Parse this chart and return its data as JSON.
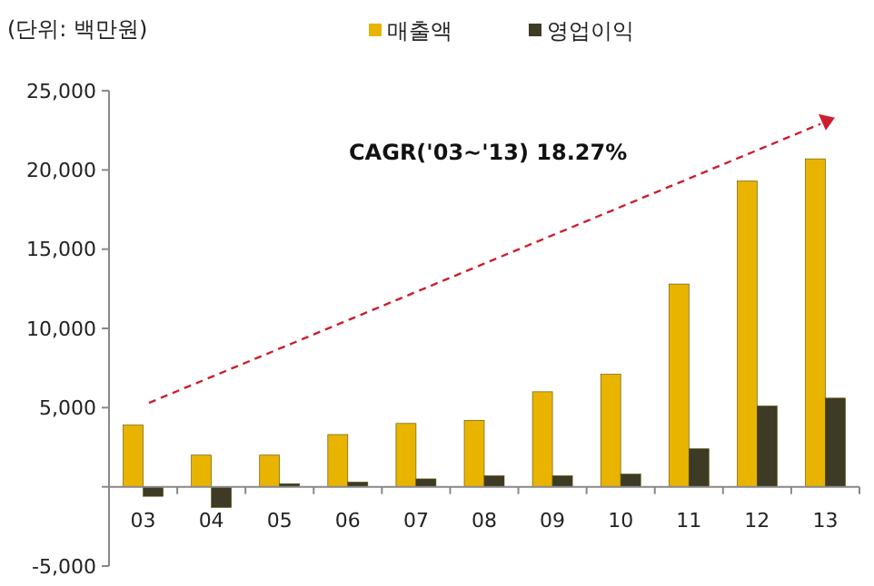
{
  "chart_data": {
    "type": "bar",
    "ylabel": "(단위: 백만원)",
    "annotations": [
      "CAGR('03~'13) 18.27%"
    ],
    "categories": [
      "03",
      "04",
      "05",
      "06",
      "07",
      "08",
      "09",
      "10",
      "11",
      "12",
      "13"
    ],
    "series": [
      {
        "name": "매출액",
        "color": "#e8b400",
        "values": [
          3900,
          2000,
          2000,
          3300,
          4000,
          4200,
          6000,
          7100,
          12800,
          19300,
          20700
        ]
      },
      {
        "name": "영업이익",
        "color": "#3d3a25",
        "values": [
          -600,
          -1300,
          200,
          300,
          500,
          700,
          700,
          800,
          2400,
          5100,
          5600
        ]
      }
    ],
    "ylim": [
      -5000,
      25000
    ],
    "yticks": [
      {
        "value": -5000,
        "label": "-5,000"
      },
      {
        "value": 0,
        "label": null
      },
      {
        "value": 5000,
        "label": "5,000"
      },
      {
        "value": 10000,
        "label": "10,000"
      },
      {
        "value": 15000,
        "label": "15,000"
      },
      {
        "value": 20000,
        "label": "20,000"
      },
      {
        "value": 25000,
        "label": "25,000"
      }
    ],
    "legend": "top",
    "grid": false
  }
}
